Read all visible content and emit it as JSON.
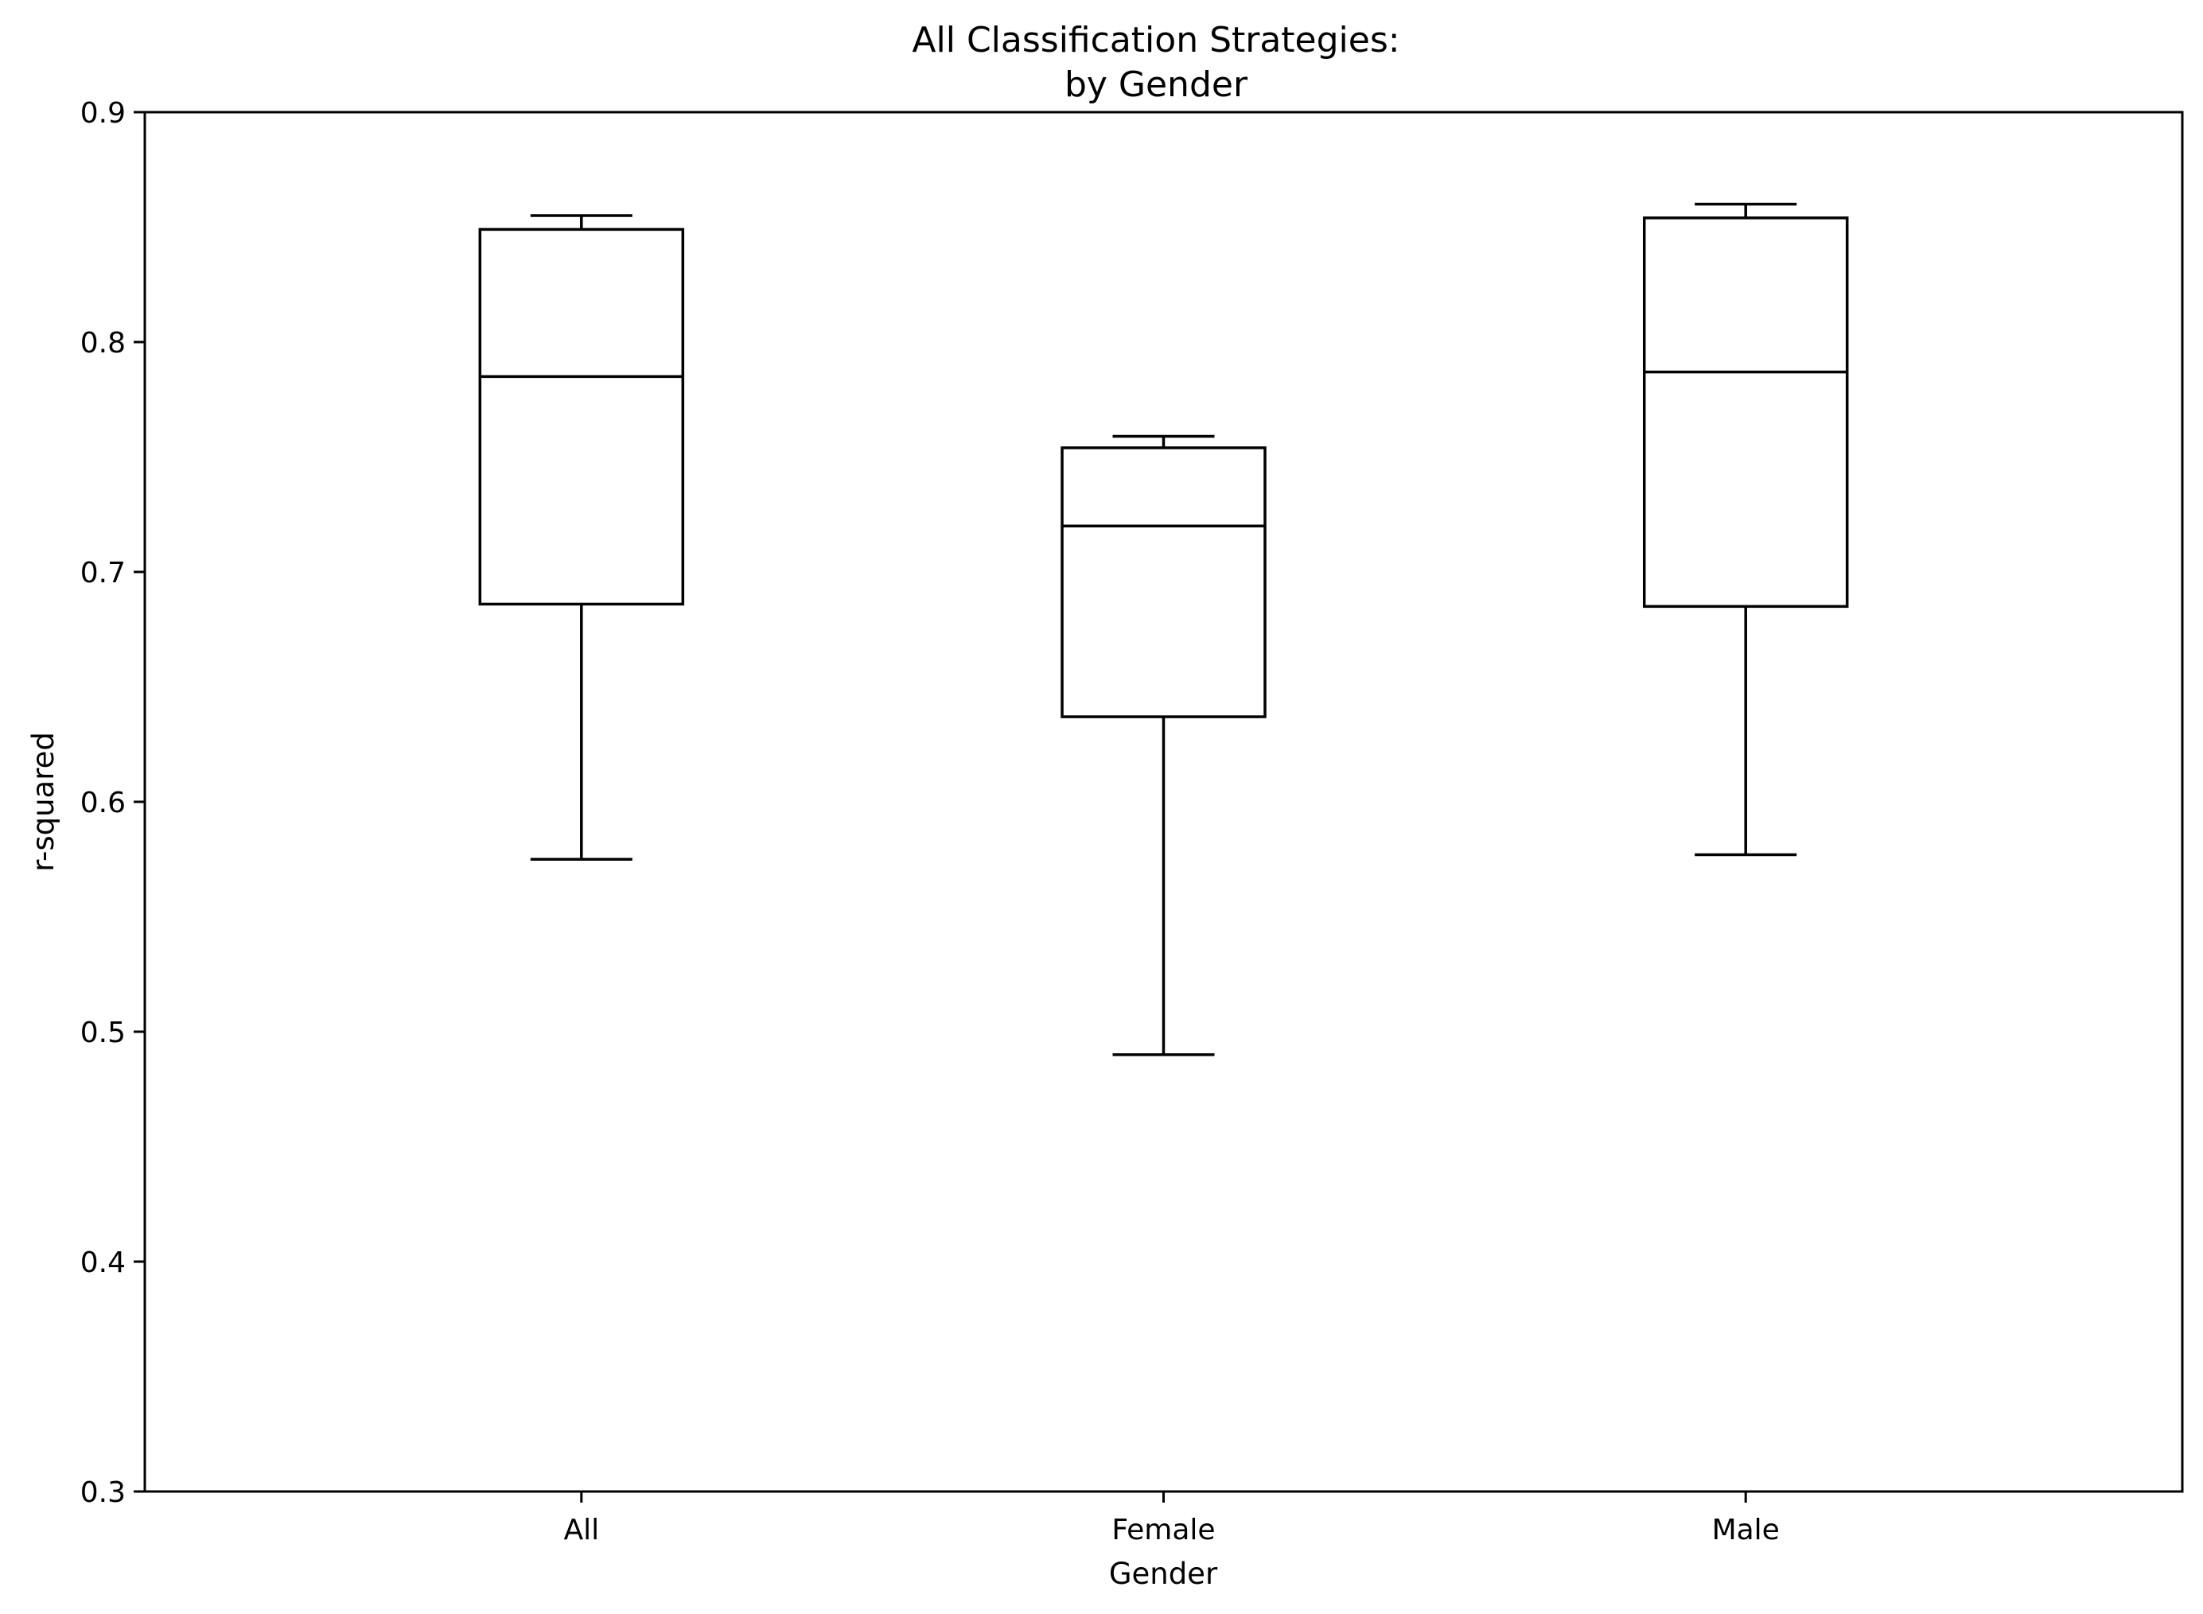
{
  "chart_data": {
    "type": "box",
    "title_lines": [
      "All Classification Strategies:",
      "by Gender"
    ],
    "xlabel": "Gender",
    "ylabel": "r-squared",
    "ylim": [
      0.3,
      0.9
    ],
    "yticks": [
      0.3,
      0.4,
      0.5,
      0.6,
      0.7,
      0.8,
      0.9
    ],
    "ytick_labels": [
      "0.3",
      "0.4",
      "0.5",
      "0.6",
      "0.7",
      "0.8",
      "0.9"
    ],
    "categories": [
      "All",
      "Female",
      "Male"
    ],
    "boxes": [
      {
        "category": "All",
        "whisker_low": 0.575,
        "q1": 0.686,
        "median": 0.785,
        "q3": 0.849,
        "whisker_high": 0.855
      },
      {
        "category": "Female",
        "whisker_low": 0.49,
        "q1": 0.637,
        "median": 0.72,
        "q3": 0.754,
        "whisker_high": 0.759
      },
      {
        "category": "Male",
        "whisker_low": 0.577,
        "q1": 0.685,
        "median": 0.787,
        "q3": 0.854,
        "whisker_high": 0.86
      }
    ],
    "grid": false,
    "legend": "none",
    "line_color": "#000000"
  }
}
